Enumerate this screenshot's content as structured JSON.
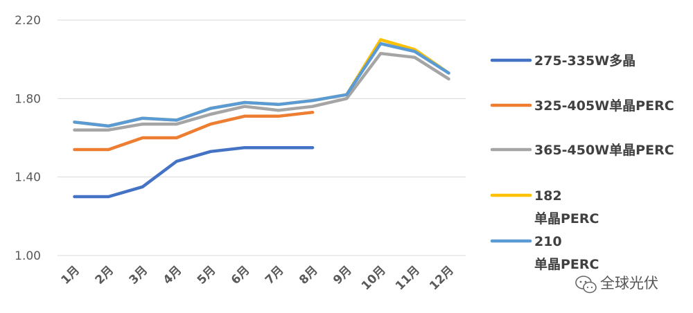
{
  "chart_data": {
    "type": "line",
    "title": "",
    "xlabel": "",
    "ylabel": "",
    "categories": [
      "1月",
      "2月",
      "3月",
      "4月",
      "5月",
      "6月",
      "7月",
      "8月",
      "9月",
      "10月",
      "11月",
      "12月"
    ],
    "yticks": [
      "1.00",
      "1.40",
      "1.80",
      "2.20"
    ],
    "ylim": [
      1.0,
      2.2
    ],
    "grid": true,
    "legend_position": "right",
    "series": [
      {
        "name": "275-335W多晶",
        "label_lines": [
          "275-335W多晶"
        ],
        "color": "#4472C4",
        "values": [
          1.3,
          1.3,
          1.35,
          1.48,
          1.53,
          1.55,
          1.55,
          1.55,
          null,
          null,
          null,
          null
        ]
      },
      {
        "name": "325-405W单晶PERC",
        "label_lines": [
          "325-405W单晶PERC"
        ],
        "color": "#ED7D31",
        "values": [
          1.54,
          1.54,
          1.6,
          1.6,
          1.67,
          1.71,
          1.71,
          1.73,
          null,
          null,
          null,
          null
        ]
      },
      {
        "name": "365-450W单晶PERC",
        "label_lines": [
          "365-450W单晶PERC"
        ],
        "color": "#A5A5A5",
        "values": [
          1.64,
          1.64,
          1.67,
          1.67,
          1.72,
          1.76,
          1.74,
          1.76,
          1.8,
          2.03,
          2.01,
          1.9
        ]
      },
      {
        "name": "182 单晶PERC",
        "label_lines": [
          "182",
          "单晶PERC"
        ],
        "color": "#FFC000",
        "values": [
          1.68,
          1.66,
          1.7,
          1.69,
          1.75,
          1.78,
          1.77,
          1.79,
          1.82,
          2.1,
          2.05,
          1.93
        ]
      },
      {
        "name": "210 单晶PERC",
        "label_lines": [
          "210",
          "单晶PERC"
        ],
        "color": "#5B9BD5",
        "values": [
          1.68,
          1.66,
          1.7,
          1.69,
          1.75,
          1.78,
          1.77,
          1.79,
          1.82,
          2.08,
          2.04,
          1.93
        ]
      }
    ]
  },
  "watermark": {
    "text": "全球光伏",
    "icon": "wechat-icon"
  }
}
